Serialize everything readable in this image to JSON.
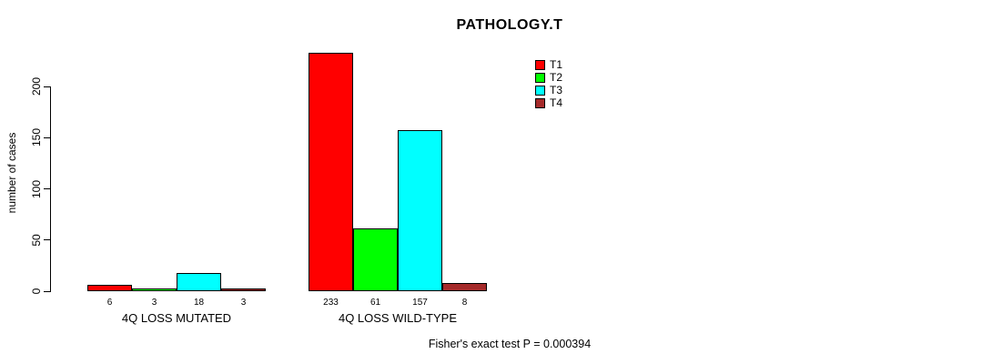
{
  "chart_data": {
    "type": "bar",
    "title": "PATHOLOGY.T",
    "xlabel": "",
    "ylabel": "number of cases",
    "categories": [
      "4Q LOSS MUTATED",
      "4Q LOSS WILD-TYPE"
    ],
    "series": [
      {
        "name": "T1",
        "color": "#ff0000",
        "values": [
          6,
          233
        ]
      },
      {
        "name": "T2",
        "color": "#00ff00",
        "values": [
          3,
          61
        ]
      },
      {
        "name": "T3",
        "color": "#00ffff",
        "values": [
          18,
          157
        ]
      },
      {
        "name": "T4",
        "color": "#a52a2a",
        "values": [
          3,
          8
        ]
      }
    ],
    "bar_value_labels": [
      [
        "6",
        "3",
        "18",
        "3"
      ],
      [
        "233",
        "61",
        "157",
        "8"
      ]
    ],
    "yticks": [
      "0",
      "50",
      "100",
      "150",
      "200"
    ],
    "ylim": [
      0,
      233
    ],
    "grid": false,
    "legend_position": "top-right",
    "legend_entries": [
      "T1",
      "T2",
      "T3",
      "T4"
    ],
    "annotation": "Fisher's exact test P = 0.000394",
    "bar_border_color": "#000000"
  }
}
